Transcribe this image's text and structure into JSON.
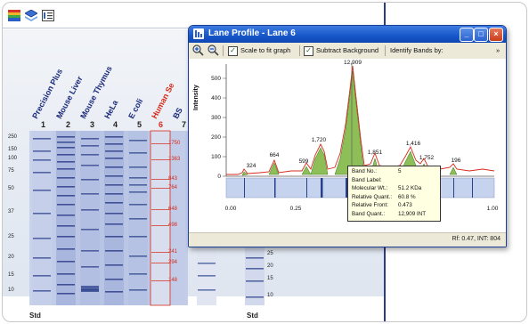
{
  "window": {
    "title": "Lane Profile - Lane 6",
    "scale_checkbox": "Scale to fit graph",
    "subtract_checkbox": "Subtract Background",
    "identify_label": "Identify Bands by:",
    "overflow": "»",
    "minimize": "_",
    "maximize": "□",
    "close": "×",
    "status": "Rf: 0.47, INT: 804"
  },
  "graph": {
    "ylabel": "Intensity",
    "y_ticks": [
      "500",
      "400",
      "300",
      "200",
      "100",
      "0"
    ],
    "x_ticks": [
      "0.00",
      "0.25",
      "0.50",
      "0.75",
      "1.00"
    ],
    "peak_labels": [
      "324",
      "664",
      "599",
      "1,720",
      "12,909",
      "1,851",
      "1,416",
      "1,752",
      "196"
    ]
  },
  "tooltip": {
    "rows": [
      {
        "label": "Band No.:",
        "value": "5"
      },
      {
        "label": "Band Label:",
        "value": ""
      },
      {
        "label": "Molecular Wt.:",
        "value": "51.2 KDa"
      },
      {
        "label": "Relative Quant.:",
        "value": "60.8 %"
      },
      {
        "label": "Relative Front:",
        "value": "0.473"
      },
      {
        "label": "Band Quant.:",
        "value": "12,909 INT"
      }
    ]
  },
  "gel": {
    "lane_labels": [
      "Precision Plus",
      "Mouse Liver",
      "Mouse Thymus",
      "HeLa",
      "E coli",
      "Human Se",
      "BS"
    ],
    "lane_numbers": [
      "1",
      "2",
      "3",
      "4",
      "5",
      "6",
      "7"
    ],
    "mw_left": [
      "250",
      "150",
      "100",
      "75",
      "50",
      "37",
      "25",
      "20",
      "15",
      "10"
    ],
    "mw_lane6": [
      "1750",
      "1363",
      "843",
      "764",
      "648",
      "498",
      "241",
      "294",
      "148"
    ],
    "mw_right": [
      "25",
      "20",
      "15",
      "10"
    ],
    "std_left": "Std",
    "std_right": "Std",
    "lane_label_color": "#1a2a7a",
    "selected_lane_color": "#d62a1a"
  }
}
